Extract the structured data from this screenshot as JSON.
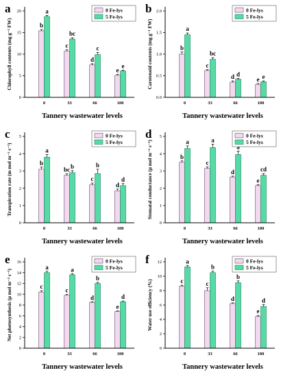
{
  "colors": {
    "series0": "#f2d9ef",
    "series0_edge": "#6a4a68",
    "series1": "#56dba7",
    "series1_edge": "#1f7d58",
    "axis": "#000000"
  },
  "chart_data": [
    {
      "panel": "a",
      "type": "bar",
      "ylabel": "Chlorophyll contents (mg g⁻¹ FW)",
      "xlabel": "Tannery wastewater levels",
      "categories": [
        "0",
        "33",
        "66",
        "100"
      ],
      "ylim": [
        0,
        20
      ],
      "yticks": [
        "0",
        "5",
        "10",
        "15",
        "20"
      ],
      "legend": "top-right",
      "series": [
        {
          "name": "0 Fe-lys",
          "values": [
            15.4,
            10.7,
            7.5,
            5.1
          ],
          "errors": [
            0.3,
            0.3,
            0.3,
            0.2
          ],
          "letters": [
            "b",
            "c",
            "d",
            "e"
          ]
        },
        {
          "name": "5 Fe-lys",
          "values": [
            18.7,
            13.5,
            9.9,
            6.1
          ],
          "errors": [
            0.3,
            0.3,
            0.5,
            0.2
          ],
          "letters": [
            "a",
            "bc",
            "c",
            "e"
          ]
        }
      ]
    },
    {
      "panel": "b",
      "type": "bar",
      "ylabel": "Carotenoid contents (mg g⁻¹ FW)",
      "xlabel": "Tannery wastewater levels",
      "categories": [
        "0",
        "33",
        "66",
        "100"
      ],
      "ylim": [
        0,
        2.0
      ],
      "yticks": [
        "0.0",
        "0.5",
        "1.0",
        "1.5",
        "2.0"
      ],
      "legend": "top-right",
      "series": [
        {
          "name": "0 Fe-lys",
          "values": [
            1.0,
            0.62,
            0.35,
            0.3
          ],
          "errors": [
            0.05,
            0.02,
            0.03,
            0.02
          ],
          "letters": [
            "b",
            "c",
            "d",
            "e"
          ]
        },
        {
          "name": "5 Fe-lys",
          "values": [
            1.45,
            0.88,
            0.42,
            0.36
          ],
          "errors": [
            0.04,
            0.04,
            0.02,
            0.02
          ],
          "letters": [
            "a",
            "bc",
            "d",
            "e"
          ]
        }
      ]
    },
    {
      "panel": "c",
      "type": "bar",
      "ylabel": "Transpiration rate (m mol m⁻² s⁻¹)",
      "xlabel": "Tannery wastewater levels",
      "categories": [
        "0",
        "33",
        "66",
        "100"
      ],
      "ylim": [
        0,
        5
      ],
      "yticks": [
        "0",
        "1",
        "2",
        "3",
        "4",
        "5"
      ],
      "legend": "top-right",
      "series": [
        {
          "name": "0 Fe-lys",
          "values": [
            3.1,
            2.75,
            2.2,
            1.85
          ],
          "errors": [
            0.12,
            0.08,
            0.1,
            0.1
          ],
          "letters": [
            "b",
            "bc",
            "c",
            "d"
          ]
        },
        {
          "name": "5 Fe-lys",
          "values": [
            3.8,
            2.9,
            2.85,
            2.15
          ],
          "errors": [
            0.15,
            0.12,
            0.25,
            0.12
          ],
          "letters": [
            "a",
            "b",
            "b",
            "d"
          ]
        }
      ]
    },
    {
      "panel": "d",
      "type": "bar",
      "ylabel": "Stomatal conductance (µ mol m⁻² s⁻¹)",
      "xlabel": "Tannery wastewater levels",
      "categories": [
        "0",
        "33",
        "66",
        "100"
      ],
      "ylim": [
        0,
        5
      ],
      "yticks": [
        "0",
        "1",
        "2",
        "3",
        "4",
        "5"
      ],
      "legend": "top-right",
      "series": [
        {
          "name": "0 Fe-lys",
          "values": [
            3.5,
            3.15,
            2.65,
            2.15
          ],
          "errors": [
            0.08,
            0.08,
            0.05,
            0.06
          ],
          "letters": [
            "b",
            "c",
            "d",
            "e"
          ]
        },
        {
          "name": "5 Fe-lys",
          "values": [
            4.3,
            4.35,
            3.95,
            2.75
          ],
          "errors": [
            0.15,
            0.2,
            0.2,
            0.1
          ],
          "letters": [
            "a",
            "a",
            "a",
            "cd"
          ]
        }
      ]
    },
    {
      "panel": "e",
      "type": "bar",
      "ylabel": "Net photosynthesis (µ mol m⁻² s⁻¹)",
      "xlabel": "Tannery wastewater levels",
      "categories": [
        "0",
        "33",
        "66",
        "100"
      ],
      "ylim": [
        0,
        16
      ],
      "yticks": [
        "0",
        "2",
        "4",
        "6",
        "8",
        "10",
        "12",
        "14",
        "16"
      ],
      "legend": "top-right",
      "series": [
        {
          "name": "0 Fe-lys",
          "values": [
            10.4,
            9.8,
            8.5,
            6.8
          ],
          "errors": [
            0.25,
            0.15,
            0.1,
            0.1
          ],
          "letters": [
            "c",
            "c",
            "d",
            "e"
          ]
        },
        {
          "name": "5 Fe-lys",
          "values": [
            14.0,
            13.6,
            12.0,
            8.6
          ],
          "errors": [
            0.25,
            0.2,
            0.2,
            0.15
          ],
          "letters": [
            "a",
            "a",
            "b",
            "d"
          ]
        }
      ]
    },
    {
      "panel": "f",
      "type": "bar",
      "ylabel": "Water use efficiency (%)",
      "xlabel": "Tannery wastewater levels",
      "categories": [
        "0",
        "33",
        "66",
        "100"
      ],
      "ylim": [
        0,
        12
      ],
      "yticks": [
        "0",
        "2",
        "4",
        "6",
        "8",
        "10",
        "12"
      ],
      "legend": "top-right",
      "series": [
        {
          "name": "0 Fe-lys",
          "values": [
            8.6,
            8.0,
            6.2,
            4.4
          ],
          "errors": [
            0.15,
            0.4,
            0.1,
            0.15
          ],
          "letters": [
            "c",
            "c",
            "d",
            "e"
          ]
        },
        {
          "name": "5 Fe-lys",
          "values": [
            11.3,
            10.5,
            9.1,
            5.8
          ],
          "errors": [
            0.2,
            0.2,
            0.25,
            0.25
          ],
          "letters": [
            "a",
            "b",
            "b",
            "d"
          ]
        }
      ]
    }
  ]
}
